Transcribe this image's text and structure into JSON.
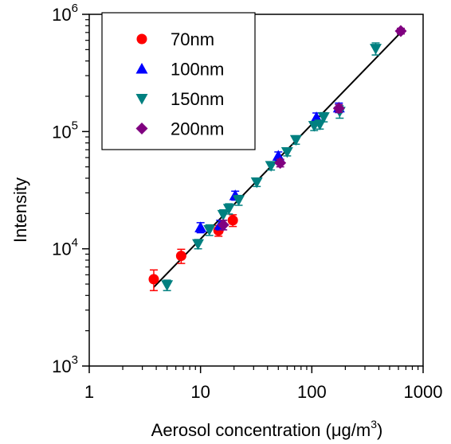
{
  "chart_data": {
    "type": "scatter",
    "xscale": "log",
    "yscale": "log",
    "xlim": [
      1,
      1000
    ],
    "ylim": [
      1000,
      1000000
    ],
    "xlabel": {
      "main": "Aerosol concentration (μg/m",
      "sup": "3",
      "end": ")"
    },
    "ylabel": "Intensity",
    "x_ticks": [
      {
        "value": 1,
        "label": "1"
      },
      {
        "value": 10,
        "label": "10"
      },
      {
        "value": 100,
        "label": "100"
      },
      {
        "value": 1000,
        "label": "1000"
      }
    ],
    "y_ticks": [
      {
        "value": 1000,
        "base": "10",
        "exp": "3"
      },
      {
        "value": 10000,
        "base": "10",
        "exp": "4"
      },
      {
        "value": 100000,
        "base": "10",
        "exp": "5"
      },
      {
        "value": 1000000,
        "base": "10",
        "exp": "6"
      }
    ],
    "legend_position": "top-left",
    "grid": false,
    "series": [
      {
        "name": "70nm",
        "marker": "circle",
        "color": "#ff0000",
        "points": [
          {
            "x": 3.8,
            "y": 5500,
            "yerr": 1100
          },
          {
            "x": 6.7,
            "y": 8700,
            "yerr": 1200
          },
          {
            "x": 14.5,
            "y": 14300,
            "yerr": 1500
          },
          {
            "x": 19.5,
            "y": 17500,
            "yerr": 2000
          }
        ]
      },
      {
        "name": "100nm",
        "marker": "triangle-up",
        "color": "#0000ff",
        "points": [
          {
            "x": 10,
            "y": 15200,
            "yerr": 1500
          },
          {
            "x": 15,
            "y": 16000,
            "yerr": 1500
          },
          {
            "x": 20.5,
            "y": 28500,
            "yerr": 2500
          },
          {
            "x": 50,
            "y": 62000,
            "yerr": 5000
          },
          {
            "x": 110,
            "y": 132000,
            "yerr": 12000
          },
          {
            "x": 175,
            "y": 160000,
            "yerr": 15000
          }
        ]
      },
      {
        "name": "150nm",
        "marker": "triangle-down",
        "color": "#008080",
        "points": [
          {
            "x": 5,
            "y": 4900,
            "yerr": 500
          },
          {
            "x": 9.5,
            "y": 11000,
            "yerr": 1000
          },
          {
            "x": 12,
            "y": 14500,
            "yerr": 1500
          },
          {
            "x": 16,
            "y": 19500,
            "yerr": 2000
          },
          {
            "x": 18,
            "y": 22000,
            "yerr": 2200
          },
          {
            "x": 22,
            "y": 26000,
            "yerr": 2500
          },
          {
            "x": 32,
            "y": 37000,
            "yerr": 3000
          },
          {
            "x": 43,
            "y": 51000,
            "yerr": 4000
          },
          {
            "x": 60,
            "y": 67000,
            "yerr": 5000
          },
          {
            "x": 72,
            "y": 85000,
            "yerr": 7000
          },
          {
            "x": 105,
            "y": 112000,
            "yerr": 10000
          },
          {
            "x": 118,
            "y": 115000,
            "yerr": 10000
          },
          {
            "x": 128,
            "y": 133000,
            "yerr": 12000
          },
          {
            "x": 178,
            "y": 148000,
            "yerr": 18000
          },
          {
            "x": 375,
            "y": 510000,
            "yerr": 60000
          }
        ]
      },
      {
        "name": "200nm",
        "marker": "diamond",
        "color": "#800080",
        "points": [
          {
            "x": 16,
            "y": 16000,
            "yerr": 1500
          },
          {
            "x": 52,
            "y": 54000,
            "yerr": 4000
          },
          {
            "x": 175,
            "y": 158000,
            "yerr": 12000
          },
          {
            "x": 630,
            "y": 720000,
            "yerr": 40000
          }
        ]
      }
    ],
    "fit_line": {
      "color": "#000000",
      "points": [
        {
          "x": 3.8,
          "y": 4700
        },
        {
          "x": 630,
          "y": 700000
        }
      ]
    }
  }
}
